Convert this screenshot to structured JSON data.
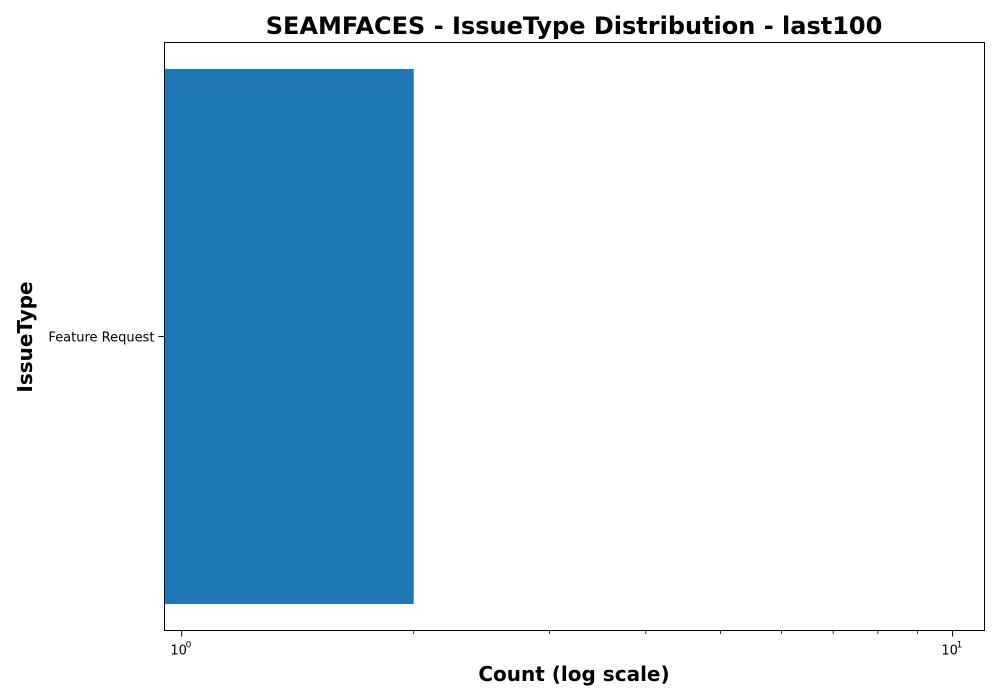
{
  "chart_data": {
    "type": "bar",
    "orientation": "horizontal",
    "title": "SEAMFACES - IssueType Distribution - last100",
    "xlabel": "Count (log scale)",
    "ylabel": "IssueType",
    "x_scale": "log",
    "xlim": [
      0.95,
      11.0
    ],
    "categories": [
      "Feature Request"
    ],
    "series": [
      {
        "values": [
          2
        ]
      }
    ],
    "x_major_ticks": [
      {
        "value": 1,
        "base": "10",
        "exponent": "0"
      },
      {
        "value": 10,
        "base": "10",
        "exponent": "1"
      }
    ],
    "x_minor_ticks": [
      2,
      3,
      4,
      5,
      6,
      7,
      8,
      9
    ],
    "grid": false,
    "legend": "none",
    "colors": {
      "bar": "#1f77b4",
      "axes": "#000000",
      "background": "#ffffff"
    }
  }
}
